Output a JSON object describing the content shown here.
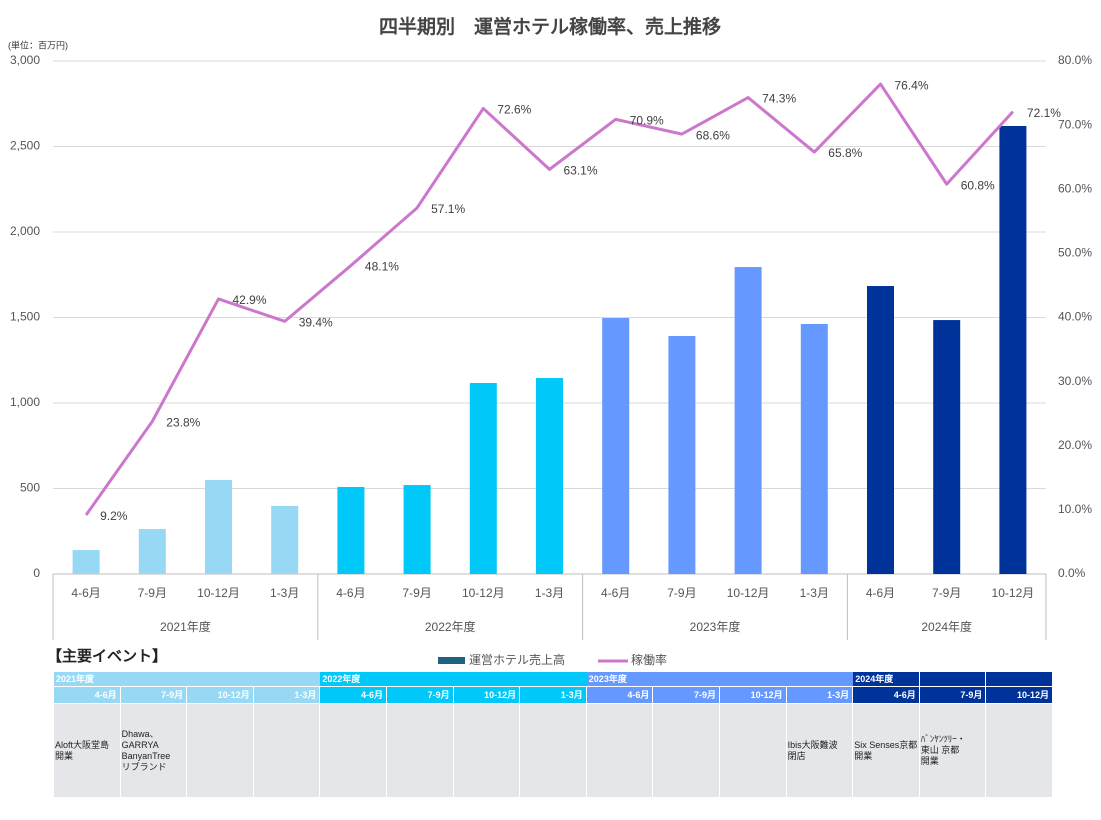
{
  "chart_data": {
    "type": "bar_line",
    "title": "四半期別　運営ホテル稼働率、売上推移",
    "unit_label": "(単位：百万円)",
    "groups": [
      {
        "label": "2021年度",
        "color": "#97d9f5",
        "categories": [
          "4-6月",
          "7-9月",
          "10-12月",
          "1-3月"
        ]
      },
      {
        "label": "2022年度",
        "color": "#00c8f8",
        "categories": [
          "4-6月",
          "7-9月",
          "10-12月",
          "1-3月"
        ]
      },
      {
        "label": "2023年度",
        "color": "#6699ff",
        "categories": [
          "4-6月",
          "7-9月",
          "10-12月",
          "1-3月"
        ]
      },
      {
        "label": "2024年度",
        "color": "#003399",
        "categories": [
          "4-6月",
          "7-9月",
          "10-12月"
        ]
      }
    ],
    "series": [
      {
        "name": "運営ホテル売上高",
        "type": "bar",
        "color": "#1f6383",
        "values": [
          140,
          263,
          550,
          398,
          509,
          520,
          1117,
          1146,
          1497,
          1392,
          1795,
          1462,
          1684,
          1485,
          2620
        ]
      },
      {
        "name": "稼働率",
        "type": "line",
        "axis": "y2",
        "color": "#cc77cc",
        "values": [
          9.2,
          23.8,
          42.9,
          39.4,
          48.1,
          57.1,
          72.6,
          63.1,
          70.9,
          68.6,
          74.3,
          65.8,
          76.4,
          60.8,
          72.1
        ],
        "value_labels": [
          "9.2%",
          "23.8%",
          "42.9%",
          "39.4%",
          "48.1%",
          "57.1%",
          "72.6%",
          "63.1%",
          "70.9%",
          "68.6%",
          "74.3%",
          "65.8%",
          "76.4%",
          "60.8%",
          "72.1%"
        ]
      }
    ],
    "ylim": [
      0,
      3000
    ],
    "yticks": [
      0,
      500,
      {
        "value": 1000,
        "label": "1,000"
      },
      {
        "value": 1500,
        "label": "1,500"
      },
      {
        "value": 2000,
        "label": "2,000"
      },
      {
        "value": 2500,
        "label": "2,500"
      },
      {
        "value": 3000,
        "label": "3,000"
      }
    ],
    "y2lim": [
      0,
      80
    ],
    "y2ticks": [
      {
        "value": 0,
        "label": "0.0%"
      },
      {
        "value": 10,
        "label": "10.0%"
      },
      {
        "value": 20,
        "label": "20.0%"
      },
      {
        "value": 30,
        "label": "30.0%"
      },
      {
        "value": 40,
        "label": "40.0%"
      },
      {
        "value": 50,
        "label": "50.0%"
      },
      {
        "value": 60,
        "label": "60.0%"
      },
      {
        "value": 70,
        "label": "70.0%"
      },
      {
        "value": 80,
        "label": "80.0%"
      }
    ],
    "grid": true,
    "legend": "bottom"
  },
  "events_table": {
    "title": "【主要イベント】",
    "years": [
      {
        "label": "2021年度",
        "color": "#97d9f5",
        "quarters": [
          {
            "label": "4-6月",
            "event": "Aloft大阪堂島\n開業"
          },
          {
            "label": "7-9月",
            "event": "Dhawa、\nGARRYA\nBanyanTree\nリブランド"
          },
          {
            "label": "10-12月"
          },
          {
            "label": "1-3月"
          }
        ]
      },
      {
        "label": "2022年度",
        "color": "#00c8f8",
        "quarters": [
          {
            "label": "4-6月"
          },
          {
            "label": "7-9月"
          },
          {
            "label": "10-12月"
          },
          {
            "label": "1-3月"
          }
        ]
      },
      {
        "label": "2023年度",
        "color": "#6699ff",
        "quarters": [
          {
            "label": "4-6月"
          },
          {
            "label": "7-9月"
          },
          {
            "label": "10-12月"
          },
          {
            "label": "1-3月",
            "event": "Ibis大阪難波\n閉店"
          }
        ]
      },
      {
        "label": "2024年度",
        "color": "#003399",
        "quarters": [
          {
            "label": "4-6月",
            "event": "Six Senses京都\n開業"
          },
          {
            "label": "7-9月",
            "event": "ﾊﾞﾝﾔﾝﾂﾘｰ・\n東山 京都\n開業"
          },
          {
            "label": "10-12月"
          }
        ]
      }
    ]
  }
}
